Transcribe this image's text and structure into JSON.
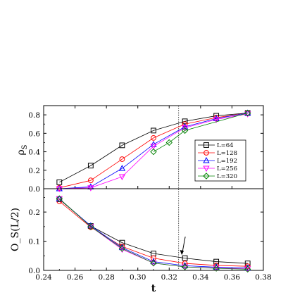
{
  "chart_data": [
    {
      "type": "line",
      "ylabel_main": "ρ",
      "ylabel_sub": "S",
      "xlim": [
        0.24,
        0.38
      ],
      "ylim": [
        0.0,
        0.9
      ],
      "yticks": [
        "0.0",
        "0.2",
        "0.4",
        "0.6",
        "0.8"
      ],
      "ytick_values": [
        0.0,
        0.2,
        0.4,
        0.6,
        0.8
      ],
      "grid": false,
      "legend_position": "right, middle",
      "reference_line_x": 0.326,
      "series": [
        {
          "name": "L=64",
          "color": "#000000",
          "marker": "square",
          "x": [
            0.25,
            0.27,
            0.29,
            0.31,
            0.33,
            0.35,
            0.37
          ],
          "y": [
            0.07,
            0.25,
            0.47,
            0.63,
            0.73,
            0.79,
            0.82
          ]
        },
        {
          "name": "L=128",
          "color": "#ff0000",
          "marker": "circle",
          "x": [
            0.25,
            0.27,
            0.29,
            0.31,
            0.33,
            0.35,
            0.37
          ],
          "y": [
            0.01,
            0.09,
            0.32,
            0.55,
            0.7,
            0.77,
            0.82
          ]
        },
        {
          "name": "L=192",
          "color": "#0000ff",
          "marker": "triangle-up",
          "x": [
            0.25,
            0.27,
            0.29,
            0.31,
            0.33,
            0.35,
            0.37
          ],
          "y": [
            0.0,
            0.02,
            0.22,
            0.48,
            0.67,
            0.76,
            0.82
          ]
        },
        {
          "name": "L=256",
          "color": "#ff00ff",
          "marker": "triangle-down",
          "x": [
            0.25,
            0.27,
            0.29,
            0.31,
            0.33,
            0.35,
            0.37
          ],
          "y": [
            0.0,
            0.01,
            0.13,
            0.46,
            0.66,
            0.75,
            0.81
          ]
        },
        {
          "name": "L=320",
          "color": "#008000",
          "marker": "diamond",
          "x": [
            0.31,
            0.32,
            0.33,
            0.37
          ],
          "y": [
            0.4,
            0.5,
            0.63,
            0.82
          ]
        }
      ]
    },
    {
      "type": "line",
      "xlabel": "t",
      "ylabel": "O_S(L/2)",
      "xlim": [
        0.24,
        0.38
      ],
      "ylim": [
        0.0,
        0.28
      ],
      "xticks": [
        "0.24",
        "0.26",
        "0.28",
        "0.30",
        "0.32",
        "0.34",
        "0.36",
        "0.38"
      ],
      "xtick_values": [
        0.24,
        0.26,
        0.28,
        0.3,
        0.32,
        0.34,
        0.36,
        0.38
      ],
      "yticks": [
        "0.0",
        "0.1",
        "0.2"
      ],
      "ytick_values": [
        0.0,
        0.1,
        0.2
      ],
      "grid": false,
      "reference_line_x": 0.326,
      "annotation": {
        "type": "arrow",
        "target_x": 0.328,
        "target_y": 0.043
      },
      "series": [
        {
          "name": "L=64",
          "color": "#000000",
          "marker": "square",
          "x": [
            0.25,
            0.27,
            0.29,
            0.31,
            0.33,
            0.35,
            0.37
          ],
          "y": [
            0.244,
            0.152,
            0.095,
            0.058,
            0.042,
            0.03,
            0.024
          ]
        },
        {
          "name": "L=128",
          "color": "#ff0000",
          "marker": "circle",
          "x": [
            0.25,
            0.27,
            0.29,
            0.31,
            0.33,
            0.35,
            0.37
          ],
          "y": [
            0.237,
            0.148,
            0.082,
            0.042,
            0.024,
            0.017,
            0.014
          ]
        },
        {
          "name": "L=192",
          "color": "#0000ff",
          "marker": "triangle-up",
          "x": [
            0.25,
            0.27,
            0.29,
            0.31,
            0.33,
            0.35,
            0.37
          ],
          "y": [
            0.245,
            0.153,
            0.078,
            0.03,
            0.016,
            0.011,
            0.008
          ]
        },
        {
          "name": "L=256",
          "color": "#ff00ff",
          "marker": "triangle-down",
          "x": [
            0.25,
            0.27,
            0.29,
            0.31,
            0.33,
            0.35,
            0.37
          ],
          "y": [
            0.246,
            0.15,
            0.072,
            0.025,
            0.012,
            0.008,
            0.005
          ]
        },
        {
          "name": "L=320",
          "color": "#008000",
          "marker": "diamond",
          "x": [
            0.25,
            0.27,
            0.29,
            0.31,
            0.33,
            0.35,
            0.37
          ],
          "y": [
            0.246,
            0.15,
            0.075,
            0.025,
            0.012,
            0.007,
            0.004
          ]
        }
      ]
    }
  ]
}
